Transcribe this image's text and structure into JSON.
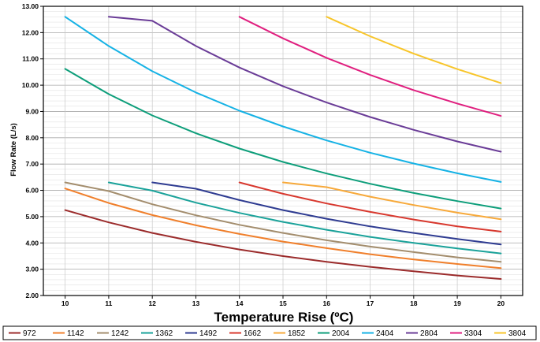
{
  "chart_data": {
    "type": "line",
    "title": "",
    "xlabel": "Temperature Rise (ºC)",
    "ylabel": "Flow Rate (L/s)",
    "xlim": [
      9.5,
      20.5
    ],
    "ylim": [
      2.0,
      13.0
    ],
    "x_ticks": [
      "10",
      "11",
      "12",
      "13",
      "14",
      "15",
      "16",
      "17",
      "18",
      "19",
      "20"
    ],
    "y_ticks": [
      "2.00",
      "3.00",
      "4.00",
      "5.00",
      "6.00",
      "7.00",
      "8.00",
      "9.00",
      "10.00",
      "11.00",
      "12.00",
      "13.00"
    ],
    "grid": true,
    "legend_position": "bottom",
    "series": [
      {
        "name": "972",
        "color": "#9b2b2b",
        "x": [
          10,
          11,
          12,
          13,
          14,
          15,
          16,
          17,
          18,
          19,
          20
        ],
        "y": [
          5.25,
          4.78,
          4.38,
          4.04,
          3.75,
          3.5,
          3.28,
          3.09,
          2.92,
          2.76,
          2.63
        ]
      },
      {
        "name": "1142",
        "color": "#f07f2b",
        "x": [
          10,
          11,
          12,
          13,
          14,
          15,
          16,
          17,
          18,
          19,
          20
        ],
        "y": [
          6.07,
          5.52,
          5.06,
          4.67,
          4.34,
          4.05,
          3.8,
          3.57,
          3.37,
          3.2,
          3.04
        ]
      },
      {
        "name": "1242",
        "color": "#a38d6d",
        "x": [
          10,
          11,
          12,
          13,
          14,
          15,
          16,
          17,
          18,
          19,
          20
        ],
        "y": [
          6.3,
          5.97,
          5.47,
          5.05,
          4.69,
          4.38,
          4.1,
          3.86,
          3.65,
          3.45,
          3.28
        ]
      },
      {
        "name": "1362",
        "color": "#1aa29a",
        "x": [
          11,
          12,
          13,
          14,
          15,
          16,
          17,
          18,
          19,
          20
        ],
        "y": [
          6.3,
          5.99,
          5.53,
          5.14,
          4.8,
          4.5,
          4.23,
          4.0,
          3.79,
          3.6
        ]
      },
      {
        "name": "1492",
        "color": "#2e3b91",
        "x": [
          12,
          13,
          14,
          15,
          16,
          17,
          18,
          19,
          20
        ],
        "y": [
          6.3,
          6.06,
          5.63,
          5.25,
          4.92,
          4.63,
          4.38,
          4.15,
          3.94
        ]
      },
      {
        "name": "1662",
        "color": "#d8382e",
        "x": [
          14,
          15,
          16,
          17,
          18,
          19,
          20
        ],
        "y": [
          6.3,
          5.87,
          5.5,
          5.18,
          4.89,
          4.63,
          4.43
        ]
      },
      {
        "name": "1852",
        "color": "#f7a93a",
        "x": [
          15,
          16,
          17,
          18,
          19,
          20
        ],
        "y": [
          6.3,
          6.12,
          5.76,
          5.44,
          5.15,
          4.9
        ]
      },
      {
        "name": "2004",
        "color": "#0d9e7a",
        "x": [
          10,
          11,
          12,
          13,
          14,
          15,
          16,
          17,
          18,
          19,
          20
        ],
        "y": [
          10.62,
          9.66,
          8.85,
          8.17,
          7.59,
          7.08,
          6.64,
          6.25,
          5.9,
          5.59,
          5.31
        ]
      },
      {
        "name": "2404",
        "color": "#15b2e5",
        "x": [
          10,
          11,
          12,
          13,
          14,
          15,
          16,
          17,
          18,
          19,
          20
        ],
        "y": [
          12.6,
          11.49,
          10.53,
          9.72,
          9.03,
          8.43,
          7.9,
          7.43,
          7.02,
          6.65,
          6.32
        ]
      },
      {
        "name": "2804",
        "color": "#6a3c97",
        "x": [
          11,
          12,
          13,
          14,
          15,
          16,
          17,
          18,
          19,
          20
        ],
        "y": [
          12.6,
          12.45,
          11.49,
          10.67,
          9.96,
          9.34,
          8.79,
          8.3,
          7.86,
          7.47
        ]
      },
      {
        "name": "3304",
        "color": "#e01f7f",
        "x": [
          14,
          15,
          16,
          17,
          18,
          19,
          20
        ],
        "y": [
          12.6,
          11.78,
          11.04,
          10.39,
          9.81,
          9.3,
          8.83
        ]
      },
      {
        "name": "3804",
        "color": "#f8c52a",
        "x": [
          16,
          17,
          18,
          19,
          20
        ],
        "y": [
          12.6,
          11.86,
          11.2,
          10.61,
          10.08
        ]
      }
    ]
  }
}
